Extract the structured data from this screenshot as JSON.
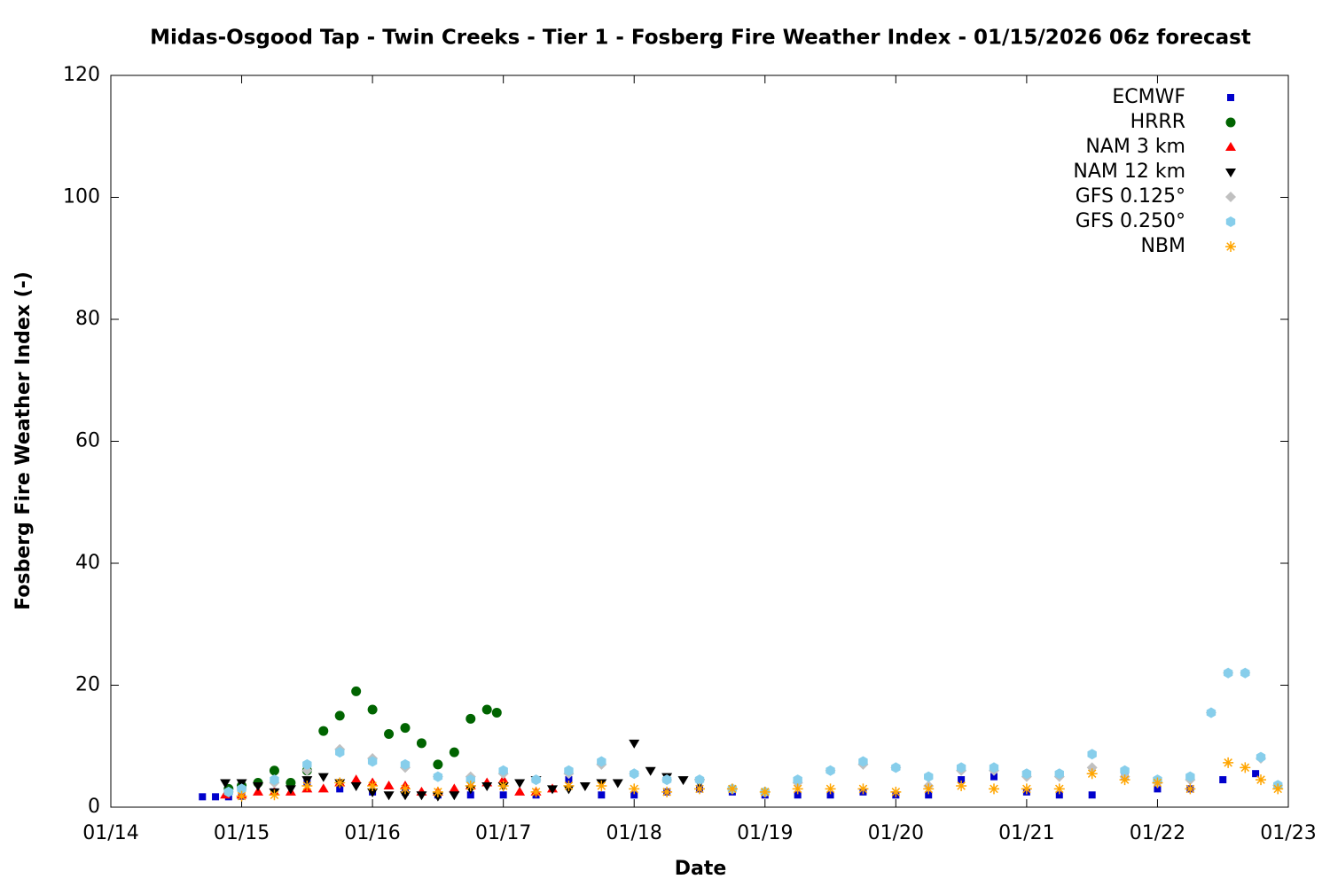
{
  "chart_data": {
    "type": "scatter",
    "title": "Midas-Osgood Tap - Twin Creeks - Tier 1 - Fosberg Fire Weather Index - 01/15/2026 06z forecast",
    "x_label": "Date",
    "y_label": "Fosberg Fire Weather Index (-)",
    "xlim": [
      0,
      9
    ],
    "xticks": [
      {
        "value": 0,
        "label": "01/14"
      },
      {
        "value": 1,
        "label": "01/15"
      },
      {
        "value": 2,
        "label": "01/16"
      },
      {
        "value": 3,
        "label": "01/17"
      },
      {
        "value": 4,
        "label": "01/18"
      },
      {
        "value": 5,
        "label": "01/19"
      },
      {
        "value": 6,
        "label": "01/20"
      },
      {
        "value": 7,
        "label": "01/21"
      },
      {
        "value": 8,
        "label": "01/22"
      },
      {
        "value": 9,
        "label": "01/23"
      }
    ],
    "ylim": [
      0,
      120
    ],
    "yticks": [
      0,
      20,
      40,
      60,
      80,
      100,
      120
    ],
    "grid": false,
    "legend_position": "top-right",
    "series": [
      {
        "name": "ECMWF",
        "color": "#0000cc",
        "marker": "square",
        "x": [
          0.7,
          0.8,
          0.9,
          1.0,
          1.25,
          1.5,
          1.75,
          2.0,
          2.25,
          2.5,
          2.75,
          3.0,
          3.25,
          3.5,
          3.75,
          4.0,
          4.25,
          4.5,
          4.75,
          5.0,
          5.25,
          5.5,
          5.75,
          6.0,
          6.25,
          6.5,
          6.75,
          7.0,
          7.25,
          7.5,
          7.75,
          8.0,
          8.25,
          8.5,
          8.75
        ],
        "values": [
          1.7,
          1.7,
          1.7,
          1.8,
          2.5,
          4,
          3,
          2.5,
          2.5,
          2,
          2,
          2,
          2,
          4.5,
          2,
          2,
          2.5,
          3,
          2.5,
          2,
          2,
          2,
          2.5,
          2,
          2,
          4.5,
          5,
          2.5,
          2,
          2,
          5,
          3,
          3,
          4.5,
          5.5
        ]
      },
      {
        "name": "HRRR",
        "color": "#006400",
        "marker": "circle",
        "x": [
          0.9,
          1.0,
          1.125,
          1.25,
          1.375,
          1.5,
          1.625,
          1.75,
          1.875,
          2.0,
          2.125,
          2.25,
          2.375,
          2.5,
          2.625,
          2.75,
          2.875,
          2.95
        ],
        "values": [
          3,
          3.5,
          4,
          6,
          4,
          6,
          12.5,
          15,
          19,
          16,
          12,
          13,
          10.5,
          7,
          9,
          14.5,
          16,
          15.5
        ]
      },
      {
        "name": "NAM 3 km",
        "color": "#ff0000",
        "marker": "triangle",
        "x": [
          0.875,
          1,
          1.125,
          1.25,
          1.375,
          1.5,
          1.625,
          1.75,
          1.875,
          2,
          2.125,
          2.25,
          2.375,
          2.5,
          2.625,
          2.75,
          2.875,
          3,
          3.125,
          3.25,
          3.375
        ],
        "values": [
          2,
          2,
          2.5,
          2.5,
          2.5,
          3,
          3,
          4,
          4.5,
          4,
          3.5,
          3.5,
          2.5,
          2.5,
          3,
          3.5,
          4,
          4.5,
          2.5,
          2.5,
          3
        ]
      },
      {
        "name": "NAM 12 km",
        "color": "#000000",
        "marker": "triangle-down",
        "x": [
          0.875,
          1,
          1.125,
          1.25,
          1.375,
          1.5,
          1.625,
          1.75,
          1.875,
          2,
          2.125,
          2.25,
          2.375,
          2.5,
          2.625,
          2.75,
          2.875,
          3,
          3.125,
          3.25,
          3.375,
          3.5,
          3.625,
          3.75,
          3.875,
          4,
          4.125,
          4.25,
          4.375,
          4.5
        ],
        "values": [
          4,
          4,
          3.5,
          2.5,
          3,
          4.5,
          5,
          4,
          3.5,
          2.5,
          2,
          2,
          2,
          1.8,
          2,
          3,
          3.5,
          3.5,
          4,
          4.5,
          3,
          3,
          3.5,
          4,
          4,
          10.5,
          6,
          5,
          4.5,
          4
        ]
      },
      {
        "name": "GFS 0.125°",
        "color": "#c0c0c0",
        "marker": "diamond",
        "x": [
          0.9,
          1.0,
          1.25,
          1.5,
          1.75,
          2.0,
          2.25,
          2.5,
          2.75,
          3.0,
          3.25,
          3.5,
          3.75,
          4.0,
          4.25,
          4.5,
          4.75,
          5.0,
          5.25,
          5.5,
          5.75,
          6.0,
          6.25,
          6.5,
          6.75,
          7.0,
          7.25,
          7.5,
          7.75,
          8.0,
          8.25,
          8.41,
          8.54,
          8.67,
          8.79,
          8.92
        ],
        "values": [
          2.5,
          3,
          4,
          6,
          9.5,
          8,
          6.5,
          5,
          5,
          5.5,
          4.5,
          5.5,
          7,
          5.5,
          4.5,
          4.5,
          3,
          2.5,
          4,
          6,
          7,
          6.5,
          3.5,
          6,
          6,
          5,
          5,
          6.5,
          5,
          4,
          4.5,
          15.5,
          22,
          22,
          8,
          3.6
        ]
      },
      {
        "name": "GFS 0.250°",
        "color": "#87ceeb",
        "marker": "hexagon",
        "x": [
          0.9,
          1.0,
          1.25,
          1.5,
          1.75,
          2.0,
          2.25,
          2.5,
          2.75,
          3.0,
          3.25,
          3.5,
          3.75,
          4.0,
          4.25,
          4.5,
          4.75,
          5.0,
          5.25,
          5.5,
          5.75,
          6.0,
          6.25,
          6.5,
          6.75,
          7.0,
          7.25,
          7.5,
          7.75,
          8.0,
          8.25,
          8.41,
          8.54,
          8.67,
          8.79,
          8.92
        ],
        "values": [
          2.5,
          3,
          4.5,
          7,
          9,
          7.5,
          7,
          5,
          4.5,
          6,
          4.5,
          6,
          7.5,
          5.5,
          4.5,
          4.5,
          3,
          2.5,
          4.5,
          6,
          7.5,
          6.5,
          5,
          6.5,
          6.5,
          5.5,
          5.5,
          8.7,
          6,
          4.5,
          5,
          15.5,
          22,
          22,
          8.2,
          3.6
        ]
      },
      {
        "name": "NBM",
        "color": "#ffa500",
        "marker": "asterisk",
        "x": [
          1.0,
          1.25,
          1.5,
          1.75,
          2.0,
          2.25,
          2.5,
          2.75,
          3.0,
          3.25,
          3.5,
          3.75,
          4.0,
          4.25,
          4.5,
          4.75,
          5.0,
          5.25,
          5.5,
          5.75,
          6.0,
          6.25,
          6.5,
          6.75,
          7.0,
          7.25,
          7.5,
          7.75,
          8.0,
          8.25,
          8.54,
          8.67,
          8.79,
          8.92
        ],
        "values": [
          1.8,
          2,
          3.5,
          4,
          3.5,
          3,
          2.5,
          3.5,
          3.5,
          2.5,
          3.5,
          3.5,
          3,
          2.5,
          3,
          3,
          2.5,
          3,
          3,
          3,
          2.5,
          3,
          3.5,
          3,
          3,
          3,
          5.5,
          4.5,
          4,
          3,
          7.3,
          6.5,
          4.5,
          3
        ]
      }
    ]
  }
}
